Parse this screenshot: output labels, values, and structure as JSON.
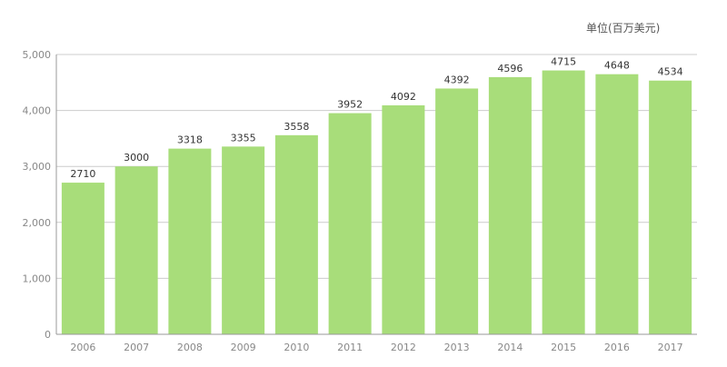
{
  "chart_data": {
    "type": "bar",
    "unit_label": "单位(百万美元)",
    "categories": [
      "2006",
      "2007",
      "2008",
      "2009",
      "2010",
      "2011",
      "2012",
      "2013",
      "2014",
      "2015",
      "2016",
      "2017"
    ],
    "values": [
      2710,
      3000,
      3318,
      3355,
      3558,
      3952,
      4092,
      4392,
      4596,
      4715,
      4648,
      4534
    ],
    "ylim": [
      0,
      5000
    ],
    "yticks": [
      0,
      1000,
      2000,
      3000,
      4000,
      5000
    ],
    "ytick_labels": [
      "0",
      "1,000",
      "2,000",
      "3,000",
      "4,000",
      "5,000"
    ],
    "grid": true,
    "bar_color": "#a8dd7a",
    "grid_color": "#cccccc",
    "axis_color": "#999999"
  }
}
